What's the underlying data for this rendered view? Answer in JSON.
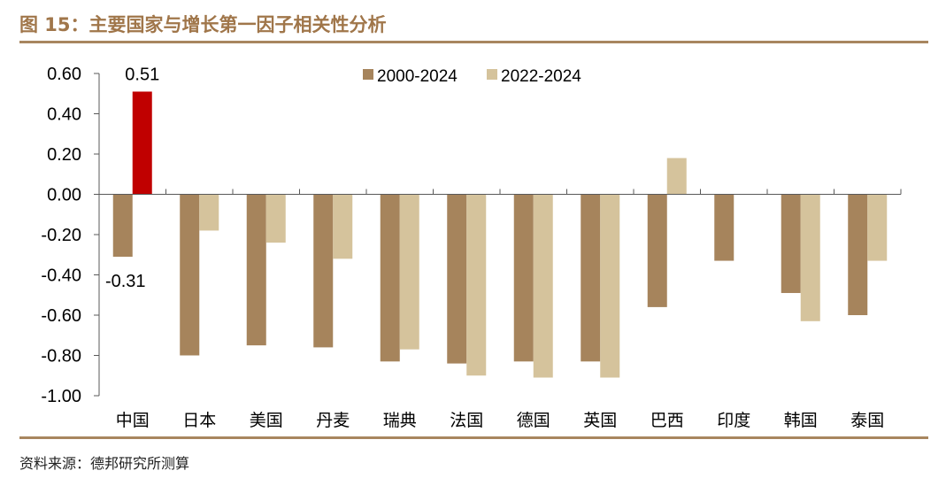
{
  "header": {
    "title": "图 15：主要国家与增长第一因子相关性分析"
  },
  "footer": {
    "source": "资料来源：德邦研究所测算"
  },
  "colors": {
    "title": "#a0764a",
    "rule": "#a8865f",
    "series_2000_2024": "#a6845c",
    "series_2022_2024": "#d5c39c",
    "highlight": "#c00000",
    "axis": "#595959",
    "text": "#000000"
  },
  "chart_data": {
    "type": "bar",
    "title": "",
    "xlabel": "",
    "ylabel": "",
    "ylim": [
      -1.0,
      0.6
    ],
    "yticks": [
      "0.60",
      "0.40",
      "0.20",
      "0.00",
      "-0.20",
      "-0.40",
      "-0.60",
      "-0.80",
      "-1.00"
    ],
    "ytick_values": [
      0.6,
      0.4,
      0.2,
      0.0,
      -0.2,
      -0.4,
      -0.6,
      -0.8,
      -1.0
    ],
    "categories": [
      "中国",
      "日本",
      "美国",
      "丹麦",
      "瑞典",
      "法国",
      "德国",
      "英国",
      "巴西",
      "印度",
      "韩国",
      "泰国"
    ],
    "series": [
      {
        "name": "2000-2024",
        "values": [
          -0.31,
          -0.8,
          -0.75,
          -0.76,
          -0.83,
          -0.84,
          -0.83,
          -0.83,
          -0.56,
          -0.33,
          -0.49,
          -0.6
        ]
      },
      {
        "name": "2022-2024",
        "values": [
          0.51,
          -0.18,
          -0.24,
          -0.32,
          -0.77,
          -0.9,
          -0.91,
          -0.91,
          0.18,
          null,
          -0.63,
          -0.33
        ]
      }
    ],
    "highlight": {
      "series": 1,
      "index": 0
    },
    "data_labels": [
      {
        "series": 0,
        "index": 0,
        "text": "-0.31"
      },
      {
        "series": 1,
        "index": 0,
        "text": "0.51"
      }
    ],
    "legend": {
      "placement": "top-center"
    },
    "grid": false
  }
}
